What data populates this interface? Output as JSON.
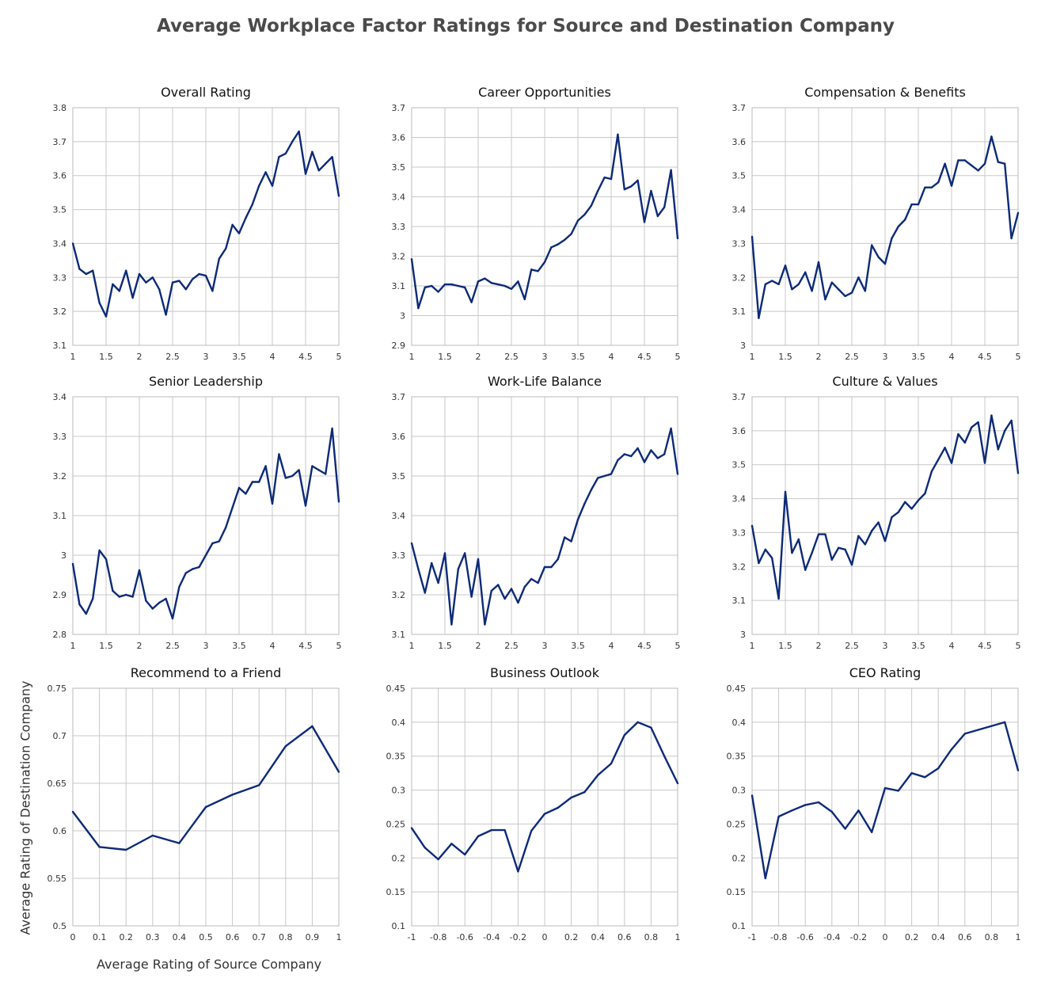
{
  "title": "Average Workplace Factor Ratings for Source and Destination Company",
  "x_axis_title": "Average Rating of Source Company",
  "y_axis_title": "Average Rating of Destination Company",
  "colors": {
    "line": "#0d2a78",
    "grid": "#c8c8c8",
    "frame": "#bbbbbb",
    "tick": "#333333"
  },
  "chart_data": [
    {
      "type": "line",
      "title": "Overall Rating",
      "xlim": [
        1,
        5
      ],
      "ylim": [
        3.1,
        3.8
      ],
      "xticks": [
        1,
        1.5,
        2,
        2.5,
        3,
        3.5,
        4,
        4.5,
        5
      ],
      "xtick_labels": [
        "1",
        "1.5",
        "2",
        "2.5",
        "3",
        "3.5",
        "4",
        "4.5",
        "5"
      ],
      "yticks": [
        3.1,
        3.2,
        3.3,
        3.4,
        3.5,
        3.6,
        3.7,
        3.8
      ],
      "ytick_labels": [
        "3.1",
        "3.2",
        "3.3",
        "3.4",
        "3.5",
        "3.6",
        "3.7",
        "3.8"
      ],
      "x": [
        1.0,
        1.1,
        1.2,
        1.3,
        1.4,
        1.5,
        1.6,
        1.7,
        1.8,
        1.9,
        2.0,
        2.1,
        2.2,
        2.3,
        2.4,
        2.5,
        2.6,
        2.7,
        2.8,
        2.9,
        3.0,
        3.1,
        3.2,
        3.3,
        3.4,
        3.5,
        3.6,
        3.7,
        3.8,
        3.9,
        4.0,
        4.1,
        4.2,
        4.3,
        4.4,
        4.5,
        4.6,
        4.7,
        4.8,
        4.9,
        5.0
      ],
      "y": [
        3.4,
        3.325,
        3.31,
        3.32,
        3.225,
        3.185,
        3.28,
        3.26,
        3.32,
        3.24,
        3.31,
        3.285,
        3.3,
        3.265,
        3.19,
        3.285,
        3.29,
        3.265,
        3.295,
        3.31,
        3.305,
        3.26,
        3.355,
        3.385,
        3.455,
        3.43,
        3.475,
        3.515,
        3.57,
        3.61,
        3.57,
        3.655,
        3.665,
        3.7,
        3.73,
        3.605,
        3.67,
        3.615,
        3.635,
        3.655,
        3.54
      ]
    },
    {
      "type": "line",
      "title": "Career Opportunities",
      "xlim": [
        1,
        5
      ],
      "ylim": [
        2.9,
        3.7
      ],
      "xticks": [
        1,
        1.5,
        2,
        2.5,
        3,
        3.5,
        4,
        4.5,
        5
      ],
      "xtick_labels": [
        "1",
        "1.5",
        "2",
        "2.5",
        "3",
        "3.5",
        "4",
        "4.5",
        "5"
      ],
      "yticks": [
        2.9,
        3.0,
        3.1,
        3.2,
        3.3,
        3.4,
        3.5,
        3.6,
        3.7
      ],
      "ytick_labels": [
        "2.9",
        "3",
        "3.1",
        "3.2",
        "3.3",
        "3.4",
        "3.5",
        "3.6",
        "3.7"
      ],
      "x": [
        1.0,
        1.1,
        1.2,
        1.3,
        1.4,
        1.5,
        1.6,
        1.7,
        1.8,
        1.9,
        2.0,
        2.1,
        2.2,
        2.3,
        2.4,
        2.5,
        2.6,
        2.7,
        2.8,
        2.9,
        3.0,
        3.1,
        3.2,
        3.3,
        3.4,
        3.5,
        3.6,
        3.7,
        3.8,
        3.9,
        4.0,
        4.1,
        4.2,
        4.3,
        4.4,
        4.5,
        4.6,
        4.7,
        4.8,
        4.9,
        5.0
      ],
      "y": [
        3.19,
        3.025,
        3.095,
        3.1,
        3.08,
        3.105,
        3.105,
        3.1,
        3.095,
        3.045,
        3.115,
        3.125,
        3.11,
        3.105,
        3.1,
        3.09,
        3.115,
        3.055,
        3.155,
        3.15,
        3.18,
        3.23,
        3.24,
        3.255,
        3.275,
        3.32,
        3.34,
        3.37,
        3.42,
        3.465,
        3.46,
        3.61,
        3.425,
        3.435,
        3.455,
        3.315,
        3.42,
        3.335,
        3.365,
        3.49,
        3.26
      ]
    },
    {
      "type": "line",
      "title": "Compensation & Benefits",
      "xlim": [
        1,
        5
      ],
      "ylim": [
        3.0,
        3.7
      ],
      "xticks": [
        1,
        1.5,
        2,
        2.5,
        3,
        3.5,
        4,
        4.5,
        5
      ],
      "xtick_labels": [
        "1",
        "1.5",
        "2",
        "2.5",
        "3",
        "3.5",
        "4",
        "4.5",
        "5"
      ],
      "yticks": [
        3.0,
        3.1,
        3.2,
        3.3,
        3.4,
        3.5,
        3.6,
        3.7
      ],
      "ytick_labels": [
        "3",
        "3.1",
        "3.2",
        "3.3",
        "3.4",
        "3.5",
        "3.6",
        "3.7"
      ],
      "x": [
        1.0,
        1.1,
        1.2,
        1.3,
        1.4,
        1.5,
        1.6,
        1.7,
        1.8,
        1.9,
        2.0,
        2.1,
        2.2,
        2.3,
        2.4,
        2.5,
        2.6,
        2.7,
        2.8,
        2.9,
        3.0,
        3.1,
        3.2,
        3.3,
        3.4,
        3.5,
        3.6,
        3.7,
        3.8,
        3.9,
        4.0,
        4.1,
        4.2,
        4.3,
        4.4,
        4.5,
        4.6,
        4.7,
        4.8,
        4.9,
        5.0
      ],
      "y": [
        3.32,
        3.08,
        3.18,
        3.19,
        3.18,
        3.235,
        3.165,
        3.18,
        3.215,
        3.16,
        3.245,
        3.135,
        3.185,
        3.165,
        3.145,
        3.155,
        3.2,
        3.16,
        3.295,
        3.26,
        3.24,
        3.315,
        3.35,
        3.37,
        3.415,
        3.415,
        3.465,
        3.465,
        3.48,
        3.535,
        3.47,
        3.545,
        3.545,
        3.53,
        3.515,
        3.535,
        3.615,
        3.54,
        3.535,
        3.315,
        3.39
      ]
    },
    {
      "type": "line",
      "title": "Senior Leadership",
      "xlim": [
        1,
        5
      ],
      "ylim": [
        2.8,
        3.4
      ],
      "xticks": [
        1,
        1.5,
        2,
        2.5,
        3,
        3.5,
        4,
        4.5,
        5
      ],
      "xtick_labels": [
        "1",
        "1.5",
        "2",
        "2.5",
        "3",
        "3.5",
        "4",
        "4.5",
        "5"
      ],
      "yticks": [
        2.8,
        2.9,
        3.0,
        3.1,
        3.2,
        3.3,
        3.4
      ],
      "ytick_labels": [
        "2.8",
        "2.9",
        "3",
        "3.1",
        "3.2",
        "3.3",
        "3.4"
      ],
      "x": [
        1.0,
        1.1,
        1.2,
        1.3,
        1.4,
        1.5,
        1.6,
        1.7,
        1.8,
        1.9,
        2.0,
        2.1,
        2.2,
        2.3,
        2.4,
        2.5,
        2.6,
        2.7,
        2.8,
        2.9,
        3.0,
        3.1,
        3.2,
        3.3,
        3.4,
        3.5,
        3.6,
        3.7,
        3.8,
        3.9,
        4.0,
        4.1,
        4.2,
        4.3,
        4.4,
        4.5,
        4.6,
        4.7,
        4.8,
        4.9,
        5.0
      ],
      "y": [
        2.978,
        2.876,
        2.852,
        2.89,
        3.012,
        2.99,
        2.91,
        2.895,
        2.9,
        2.895,
        2.962,
        2.885,
        2.865,
        2.88,
        2.89,
        2.84,
        2.92,
        2.955,
        2.965,
        2.97,
        3.0,
        3.03,
        3.035,
        3.07,
        3.12,
        3.17,
        3.155,
        3.185,
        3.185,
        3.225,
        3.13,
        3.255,
        3.195,
        3.2,
        3.215,
        3.125,
        3.225,
        3.215,
        3.205,
        3.32,
        3.135
      ]
    },
    {
      "type": "line",
      "title": "Work-Life Balance",
      "xlim": [
        1,
        5
      ],
      "ylim": [
        3.1,
        3.7
      ],
      "xticks": [
        1,
        1.5,
        2,
        2.5,
        3,
        3.5,
        4,
        4.5,
        5
      ],
      "xtick_labels": [
        "1",
        "1.5",
        "2",
        "2.5",
        "3",
        "3.5",
        "4",
        "4.5",
        "5"
      ],
      "yticks": [
        3.1,
        3.2,
        3.3,
        3.4,
        3.5,
        3.6,
        3.7
      ],
      "ytick_labels": [
        "3.1",
        "3.2",
        "3.3",
        "3.4",
        "3.5",
        "3.6",
        "3.7"
      ],
      "x": [
        1.0,
        1.1,
        1.2,
        1.3,
        1.4,
        1.5,
        1.6,
        1.7,
        1.8,
        1.9,
        2.0,
        2.1,
        2.2,
        2.3,
        2.4,
        2.5,
        2.6,
        2.7,
        2.8,
        2.9,
        3.0,
        3.1,
        3.2,
        3.3,
        3.4,
        3.5,
        3.6,
        3.7,
        3.8,
        3.9,
        4.0,
        4.1,
        4.2,
        4.3,
        4.4,
        4.5,
        4.6,
        4.7,
        4.8,
        4.9,
        5.0
      ],
      "y": [
        3.33,
        3.265,
        3.205,
        3.28,
        3.23,
        3.305,
        3.125,
        3.265,
        3.305,
        3.195,
        3.29,
        3.125,
        3.21,
        3.225,
        3.19,
        3.215,
        3.18,
        3.22,
        3.24,
        3.23,
        3.27,
        3.27,
        3.29,
        3.345,
        3.335,
        3.39,
        3.43,
        3.465,
        3.495,
        3.5,
        3.505,
        3.54,
        3.555,
        3.55,
        3.57,
        3.535,
        3.565,
        3.545,
        3.555,
        3.62,
        3.505
      ]
    },
    {
      "type": "line",
      "title": "Culture & Values",
      "xlim": [
        1,
        5
      ],
      "ylim": [
        3.0,
        3.7
      ],
      "xticks": [
        1,
        1.5,
        2,
        2.5,
        3,
        3.5,
        4,
        4.5,
        5
      ],
      "xtick_labels": [
        "1",
        "1.5",
        "2",
        "2.5",
        "3",
        "3.5",
        "4",
        "4.5",
        "5"
      ],
      "yticks": [
        3.0,
        3.1,
        3.2,
        3.3,
        3.4,
        3.5,
        3.6,
        3.7
      ],
      "ytick_labels": [
        "3",
        "3.1",
        "3.2",
        "3.3",
        "3.4",
        "3.5",
        "3.6",
        "3.7"
      ],
      "x": [
        1.0,
        1.1,
        1.2,
        1.3,
        1.4,
        1.5,
        1.6,
        1.7,
        1.8,
        1.9,
        2.0,
        2.1,
        2.2,
        2.3,
        2.4,
        2.5,
        2.6,
        2.7,
        2.8,
        2.9,
        3.0,
        3.1,
        3.2,
        3.3,
        3.4,
        3.5,
        3.6,
        3.7,
        3.8,
        3.9,
        4.0,
        4.1,
        4.2,
        4.3,
        4.4,
        4.5,
        4.6,
        4.7,
        4.8,
        4.9,
        5.0
      ],
      "y": [
        3.32,
        3.21,
        3.25,
        3.225,
        3.105,
        3.42,
        3.24,
        3.28,
        3.19,
        3.24,
        3.295,
        3.295,
        3.22,
        3.255,
        3.25,
        3.205,
        3.29,
        3.265,
        3.305,
        3.33,
        3.275,
        3.345,
        3.36,
        3.39,
        3.37,
        3.395,
        3.415,
        3.48,
        3.515,
        3.55,
        3.505,
        3.59,
        3.565,
        3.61,
        3.625,
        3.505,
        3.645,
        3.545,
        3.6,
        3.63,
        3.475
      ]
    },
    {
      "type": "line",
      "title": "Recommend to a Friend",
      "xlim": [
        0,
        1
      ],
      "ylim": [
        0.5,
        0.75
      ],
      "xticks": [
        0,
        0.1,
        0.2,
        0.3,
        0.4,
        0.5,
        0.6,
        0.7,
        0.8,
        0.9,
        1
      ],
      "xtick_labels": [
        "0",
        "0.1",
        "0.2",
        "0.3",
        "0.4",
        "0.5",
        "0.6",
        "0.7",
        "0.8",
        "0.9",
        "1"
      ],
      "yticks": [
        0.5,
        0.55,
        0.6,
        0.65,
        0.7,
        0.75
      ],
      "ytick_labels": [
        "0.5",
        "0.55",
        "0.6",
        "0.65",
        "0.7",
        "0.75"
      ],
      "x": [
        0,
        0.1,
        0.2,
        0.3,
        0.4,
        0.5,
        0.6,
        0.7,
        0.8,
        0.9,
        1.0
      ],
      "y": [
        0.62,
        0.583,
        0.58,
        0.595,
        0.587,
        0.625,
        0.638,
        0.648,
        0.689,
        0.71,
        0.662
      ]
    },
    {
      "type": "line",
      "title": "Business Outlook",
      "xlim": [
        -1,
        1
      ],
      "ylim": [
        0.1,
        0.45
      ],
      "xticks": [
        -1,
        -0.8,
        -0.6,
        -0.4,
        -0.2,
        0,
        0.2,
        0.4,
        0.6,
        0.8,
        1
      ],
      "xtick_labels": [
        "-1",
        "-0.8",
        "-0.6",
        "-0.4",
        "-0.2",
        "0",
        "0.2",
        "0.4",
        "0.6",
        "0.8",
        "1"
      ],
      "yticks": [
        0.1,
        0.15,
        0.2,
        0.25,
        0.3,
        0.35,
        0.4,
        0.45
      ],
      "ytick_labels": [
        "0.1",
        "0.15",
        "0.2",
        "0.25",
        "0.3",
        "0.35",
        "0.4",
        "0.45"
      ],
      "x": [
        -1.0,
        -0.9,
        -0.8,
        -0.7,
        -0.6,
        -0.5,
        -0.4,
        -0.3,
        -0.2,
        -0.1,
        0.0,
        0.1,
        0.2,
        0.3,
        0.4,
        0.5,
        0.6,
        0.7,
        0.8,
        0.9,
        1.0
      ],
      "y": [
        0.244,
        0.215,
        0.198,
        0.221,
        0.205,
        0.232,
        0.241,
        0.241,
        0.18,
        0.24,
        0.265,
        0.274,
        0.289,
        0.297,
        0.322,
        0.339,
        0.381,
        0.4,
        0.392,
        0.35,
        0.31
      ]
    },
    {
      "type": "line",
      "title": "CEO Rating",
      "xlim": [
        -1,
        1
      ],
      "ylim": [
        0.1,
        0.45
      ],
      "xticks": [
        -1,
        -0.8,
        -0.6,
        -0.4,
        -0.2,
        0,
        0.2,
        0.4,
        0.6,
        0.8,
        1
      ],
      "xtick_labels": [
        "-1",
        "-0.8",
        "-0.6",
        "-0.4",
        "-0.2",
        "0",
        "0.2",
        "0.4",
        "0.6",
        "0.8",
        "1"
      ],
      "yticks": [
        0.1,
        0.15,
        0.2,
        0.25,
        0.3,
        0.35,
        0.4,
        0.45
      ],
      "ytick_labels": [
        "0.1",
        "0.15",
        "0.2",
        "0.25",
        "0.3",
        "0.35",
        "0.4",
        "0.45"
      ],
      "x": [
        -1.0,
        -0.9,
        -0.8,
        -0.7,
        -0.6,
        -0.5,
        -0.4,
        -0.3,
        -0.2,
        -0.1,
        0.0,
        0.1,
        0.2,
        0.3,
        0.4,
        0.5,
        0.6,
        0.9,
        1.0
      ],
      "y": [
        0.292,
        0.17,
        0.261,
        0.27,
        0.278,
        0.282,
        0.268,
        0.243,
        0.27,
        0.238,
        0.303,
        0.299,
        0.325,
        0.319,
        0.332,
        0.36,
        0.383,
        0.4,
        0.329
      ]
    }
  ]
}
